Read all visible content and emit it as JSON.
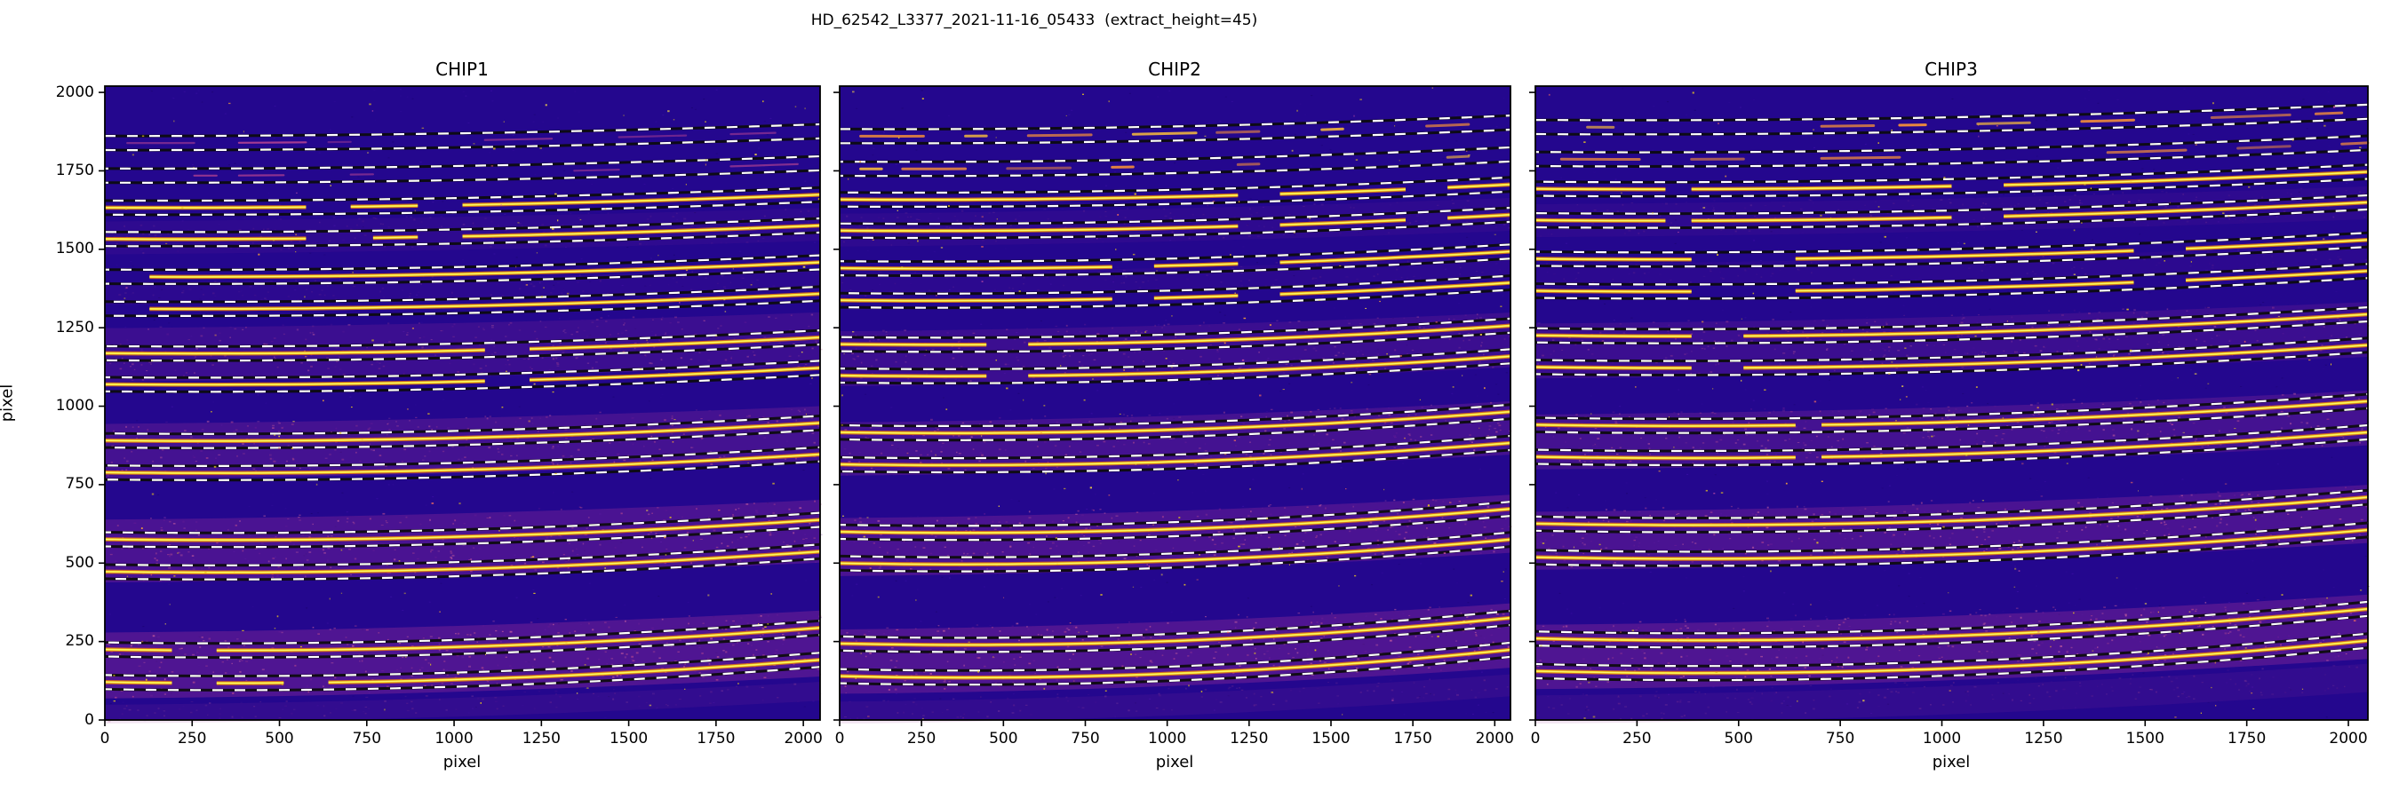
{
  "figure": {
    "suptitle": "HD_62542_L3377_2021-11-16_05433  (extract_height=45)"
  },
  "axes": {
    "xlabel": "pixel",
    "ylabel": "pixel",
    "xtick_labels": [
      "0",
      "250",
      "500",
      "750",
      "1000",
      "1250",
      "1500",
      "1750",
      "2000"
    ],
    "ytick_labels": [
      "0",
      "250",
      "500",
      "750",
      "1000",
      "1250",
      "1500",
      "1750",
      "2000"
    ],
    "xticks": [
      0,
      250,
      500,
      750,
      1000,
      1250,
      1500,
      1750,
      2000
    ],
    "yticks": [
      0,
      250,
      500,
      750,
      1000,
      1250,
      1500,
      1750,
      2000
    ]
  },
  "colors": {
    "figure_bg": "#ffffff",
    "image_bg": "#24078e",
    "bg_noise": [
      "#2f0a97",
      "#1b0570",
      "#3d0fa6"
    ],
    "band_base": "#9c2f9b",
    "band_dots": [
      "#c24f8e",
      "#d4679f",
      "#6a1d96"
    ],
    "trace_glow": "#ee7b0e",
    "trace_core": "#f7e325",
    "trace_hot": "#fdf77f",
    "faint_trace_chip1": "#cf4d92",
    "medium_trace_a": "#ef8b3c",
    "medium_trace_b": "#f6bb3d",
    "dash_white": "#ffffff",
    "dash_black": "#0c0c0c",
    "spine": "#000000",
    "speckles": [
      "#e8c61f",
      "#f6d744",
      "#fca636",
      "#e16462",
      "#d557a6"
    ]
  },
  "chart_data": {
    "type": "heatmap",
    "title": "HD_62542_L3377_2021-11-16_05433  (extract_height=45)",
    "colormap": "plasma",
    "extract_height": 45,
    "extraction_window": "order trace y ± 22.5 px, drawn as white dashed lines",
    "xlabel": "pixel",
    "ylabel": "pixel",
    "xlim": [
      0,
      2048
    ],
    "ylim": [
      0,
      2048
    ],
    "xticks": [
      0,
      250,
      500,
      750,
      1000,
      1250,
      1500,
      1750,
      2000
    ],
    "yticks": [
      0,
      250,
      500,
      750,
      1000,
      1250,
      1500,
      1750,
      2000
    ],
    "panels": [
      {
        "title": "CHIP1",
        "orders": [
          {
            "y": 1850,
            "kind": "faint"
          },
          {
            "y": 1746,
            "kind": "faint"
          },
          {
            "y": 1644,
            "kind": "bright",
            "breaks": [
              [
                620,
                700
              ],
              [
                930,
                965
              ]
            ]
          },
          {
            "y": 1544,
            "kind": "bright",
            "breaks": [
              [
                622,
                706
              ],
              [
                932,
                972
              ]
            ]
          },
          {
            "y": 1424,
            "kind": "bright",
            "breaks": [
              [
                45,
                75
              ]
            ]
          },
          {
            "y": 1322,
            "kind": "bright",
            "breaks": [
              [
                46,
                78
              ]
            ]
          },
          {
            "y": 1180,
            "kind": "bright",
            "breaks": [
              [
                1145,
                1178
              ]
            ]
          },
          {
            "y": 1081,
            "kind": "bright",
            "breaks": [
              [
                1150,
                1184
              ]
            ]
          },
          {
            "y": 902,
            "kind": "bright"
          },
          {
            "y": 800,
            "kind": "bright"
          },
          {
            "y": 587,
            "kind": "bright"
          },
          {
            "y": 484,
            "kind": "bright"
          },
          {
            "y": 236,
            "kind": "bright",
            "breaks": [
              [
                215,
                292
              ]
            ]
          },
          {
            "y": 132,
            "kind": "bright",
            "breaks": [
              [
                212,
                300
              ],
              [
                558,
                592
              ]
            ]
          }
        ],
        "bands": [
          [
            80,
            290,
            0.9
          ],
          [
            450,
            650,
            0.8
          ],
          [
            780,
            955,
            0.68
          ],
          [
            1090,
            1260,
            0.5
          ],
          [
            1335,
            1405,
            0.18
          ],
          [
            1495,
            1600,
            0.22
          ],
          [
            0,
            60,
            0.3
          ]
        ]
      },
      {
        "title": "CHIP2",
        "orders": [
          {
            "y": 1872,
            "kind": "medium"
          },
          {
            "y": 1768,
            "kind": "medium"
          },
          {
            "y": 1670,
            "kind": "bright",
            "breaks": [
              [
                1250,
                1310
              ],
              [
                1740,
                1795
              ]
            ]
          },
          {
            "y": 1571,
            "kind": "bright",
            "breaks": [
              [
                1255,
                1318
              ],
              [
                1745,
                1802
              ]
            ]
          },
          {
            "y": 1451,
            "kind": "bright",
            "breaks": [
              [
                855,
                900
              ],
              [
                1238,
                1288
              ]
            ]
          },
          {
            "y": 1349,
            "kind": "bright",
            "breaks": [
              [
                860,
                905
              ],
              [
                1242,
                1295
              ]
            ]
          },
          {
            "y": 1209,
            "kind": "bright",
            "breaks": [
              [
                488,
                532
              ]
            ]
          },
          {
            "y": 1109,
            "kind": "bright",
            "breaks": [
              [
                492,
                540
              ]
            ]
          },
          {
            "y": 928,
            "kind": "bright"
          },
          {
            "y": 826,
            "kind": "bright"
          },
          {
            "y": 611,
            "kind": "bright"
          },
          {
            "y": 511,
            "kind": "bright"
          },
          {
            "y": 255,
            "kind": "bright"
          },
          {
            "y": 151,
            "kind": "bright"
          }
        ],
        "bands": [
          [
            95,
            300,
            0.9
          ],
          [
            470,
            655,
            0.8
          ],
          [
            790,
            960,
            0.68
          ],
          [
            1075,
            1250,
            0.5
          ],
          [
            1360,
            1435,
            0.18
          ],
          [
            1520,
            1625,
            0.22
          ],
          [
            0,
            70,
            0.3
          ]
        ]
      },
      {
        "title": "CHIP3",
        "orders": [
          {
            "y": 1901,
            "kind": "medium"
          },
          {
            "y": 1799,
            "kind": "medium"
          },
          {
            "y": 1704,
            "kind": "bright",
            "breaks": [
              [
                320,
                352
              ],
              [
                1048,
                1112
              ]
            ]
          },
          {
            "y": 1604,
            "kind": "bright",
            "breaks": [
              [
                322,
                356
              ],
              [
                1052,
                1120
              ]
            ]
          },
          {
            "y": 1481,
            "kind": "bright",
            "breaks": [
              [
                388,
                585
              ],
              [
                1500,
                1548
              ]
            ]
          },
          {
            "y": 1379,
            "kind": "bright",
            "breaks": [
              [
                392,
                596
              ],
              [
                1505,
                1556
              ]
            ]
          },
          {
            "y": 1237,
            "kind": "bright",
            "breaks": [
              [
                428,
                480
              ]
            ]
          },
          {
            "y": 1136,
            "kind": "bright",
            "breaks": [
              [
                432,
                488
              ]
            ]
          },
          {
            "y": 952,
            "kind": "bright",
            "breaks": [
              [
                640,
                692
              ]
            ]
          },
          {
            "y": 850,
            "kind": "bright",
            "breaks": [
              [
                645,
                698
              ]
            ]
          },
          {
            "y": 637,
            "kind": "bright"
          },
          {
            "y": 530,
            "kind": "bright"
          },
          {
            "y": 271,
            "kind": "bright"
          },
          {
            "y": 167,
            "kind": "bright"
          }
        ],
        "bands": [
          [
            110,
            315,
            0.9
          ],
          [
            490,
            675,
            0.8
          ],
          [
            810,
            985,
            0.68
          ],
          [
            1100,
            1275,
            0.5
          ],
          [
            1390,
            1465,
            0.18
          ],
          [
            1550,
            1655,
            0.22
          ],
          [
            0,
            90,
            0.3
          ]
        ]
      }
    ]
  }
}
